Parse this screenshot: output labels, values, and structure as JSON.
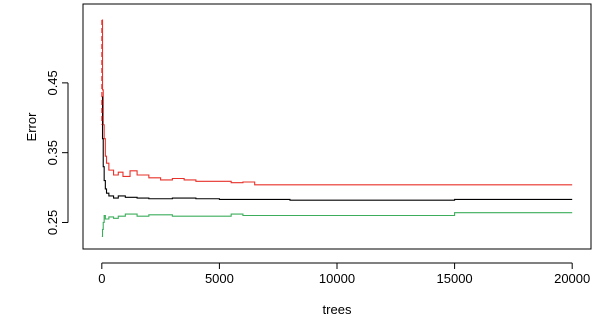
{
  "chart_data": {
    "type": "line",
    "title": "",
    "xlabel": "trees",
    "ylabel": "Error",
    "xlim": [
      -800,
      20800
    ],
    "ylim": [
      0.212,
      0.563
    ],
    "x_ticks": [
      0,
      5000,
      10000,
      15000,
      20000
    ],
    "x_tick_labels": [
      "0",
      "5000",
      "10000",
      "15000",
      "20000"
    ],
    "y_ticks": [
      0.25,
      0.35,
      0.45
    ],
    "y_tick_labels": [
      "0.25",
      "0.35",
      "0.45"
    ],
    "grid": false,
    "legend": "none",
    "series": [
      {
        "color": "#e8312a",
        "values": [
          [
            1,
            0.54
          ],
          [
            30,
            0.44
          ],
          [
            60,
            0.39
          ],
          [
            100,
            0.37
          ],
          [
            150,
            0.345
          ],
          [
            200,
            0.335
          ],
          [
            300,
            0.325
          ],
          [
            500,
            0.318
          ],
          [
            700,
            0.322
          ],
          [
            900,
            0.316
          ],
          [
            1200,
            0.324
          ],
          [
            1500,
            0.318
          ],
          [
            2000,
            0.314
          ],
          [
            2500,
            0.311
          ],
          [
            3000,
            0.313
          ],
          [
            3500,
            0.311
          ],
          [
            4000,
            0.309
          ],
          [
            5000,
            0.309
          ],
          [
            5500,
            0.307
          ],
          [
            6000,
            0.308
          ],
          [
            6500,
            0.304
          ],
          [
            10000,
            0.304
          ],
          [
            15000,
            0.304
          ],
          [
            20000,
            0.304
          ]
        ]
      },
      {
        "color": "#000000",
        "values": [
          [
            1,
            0.43
          ],
          [
            30,
            0.37
          ],
          [
            60,
            0.33
          ],
          [
            100,
            0.31
          ],
          [
            150,
            0.298
          ],
          [
            200,
            0.292
          ],
          [
            300,
            0.288
          ],
          [
            500,
            0.285
          ],
          [
            700,
            0.288
          ],
          [
            1000,
            0.286
          ],
          [
            1500,
            0.285
          ],
          [
            2000,
            0.284
          ],
          [
            3000,
            0.285
          ],
          [
            4000,
            0.284
          ],
          [
            5000,
            0.283
          ],
          [
            6000,
            0.283
          ],
          [
            8000,
            0.282
          ],
          [
            10000,
            0.282
          ],
          [
            12000,
            0.282
          ],
          [
            15000,
            0.283
          ],
          [
            20000,
            0.283
          ]
        ]
      },
      {
        "color": "#3cae5b",
        "values": [
          [
            1,
            0.23
          ],
          [
            30,
            0.24
          ],
          [
            60,
            0.25
          ],
          [
            100,
            0.26
          ],
          [
            150,
            0.255
          ],
          [
            300,
            0.258
          ],
          [
            500,
            0.256
          ],
          [
            700,
            0.259
          ],
          [
            1000,
            0.262
          ],
          [
            1500,
            0.259
          ],
          [
            2000,
            0.261
          ],
          [
            3000,
            0.259
          ],
          [
            5000,
            0.259
          ],
          [
            5500,
            0.262
          ],
          [
            6000,
            0.26
          ],
          [
            10000,
            0.26
          ],
          [
            12500,
            0.26
          ],
          [
            15000,
            0.264
          ],
          [
            20000,
            0.264
          ]
        ]
      }
    ]
  }
}
